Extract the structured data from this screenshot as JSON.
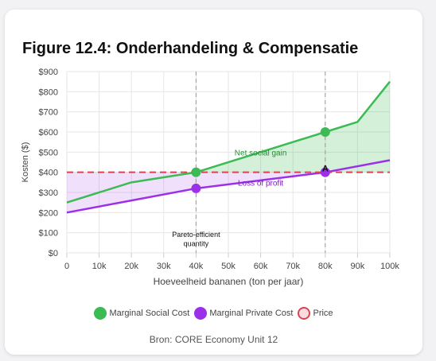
{
  "title": "Figure 12.4: Onderhandeling & Compensatie",
  "source": "Bron: CORE Economy Unit 12",
  "colors": {
    "social": "#3cba54",
    "private": "#9b30e8",
    "price": "#d94452",
    "net_gain_fill": "rgba(60,186,84,0.22)",
    "loss_fill": "rgba(155,48,232,0.15)"
  },
  "chart_data": {
    "type": "line",
    "xlabel": "Hoeveelheid bananen (ton per jaar)",
    "ylabel": "Kosten ($)",
    "x_ticks": [
      "0",
      "10k",
      "20k",
      "30k",
      "40k",
      "50k",
      "60k",
      "70k",
      "80k",
      "90k",
      "100k"
    ],
    "y_ticks": [
      "$0",
      "$100",
      "$200",
      "$300",
      "$400",
      "$500",
      "$600",
      "$700",
      "$800",
      "$900"
    ],
    "xlim": [
      0,
      100000
    ],
    "ylim": [
      0,
      900
    ],
    "grid": true,
    "legend_position": "bottom",
    "series": [
      {
        "name": "Marginal Social Cost",
        "color": "#3cba54",
        "x": [
          0,
          20000,
          40000,
          80000,
          90000,
          100000
        ],
        "y": [
          250,
          350,
          400,
          600,
          650,
          850
        ]
      },
      {
        "name": "Marginal Private Cost",
        "color": "#9b30e8",
        "x": [
          0,
          40000,
          80000,
          100000
        ],
        "y": [
          200,
          320,
          400,
          460
        ]
      },
      {
        "name": "Price",
        "color": "#d94452",
        "style": "dashed",
        "x": [
          0,
          100000
        ],
        "y": [
          400,
          400
        ]
      }
    ],
    "markers": [
      {
        "series": "Marginal Social Cost",
        "x": 40000,
        "y": 400
      },
      {
        "series": "Marginal Social Cost",
        "x": 80000,
        "y": 600
      },
      {
        "series": "Marginal Private Cost",
        "x": 40000,
        "y": 320
      },
      {
        "series": "Marginal Private Cost",
        "x": 80000,
        "y": 400
      }
    ],
    "vlines": [
      40000,
      80000
    ],
    "annotations": [
      {
        "text": "Net social gain",
        "x": 60000,
        "y": 500
      },
      {
        "text": "Loss of profit",
        "x": 60000,
        "y": 350
      },
      {
        "text": "A",
        "x": 80000,
        "y": 420
      },
      {
        "text": "Pareto-efficient",
        "x": 40000,
        "y": 95
      },
      {
        "text": "quantity",
        "x": 40000,
        "y": 50
      }
    ]
  }
}
